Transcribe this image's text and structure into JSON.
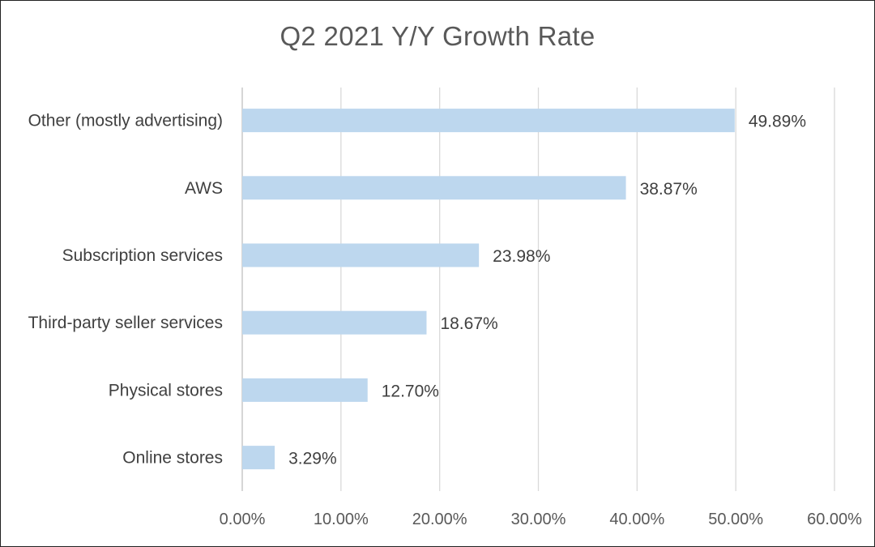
{
  "chart_data": {
    "type": "bar",
    "orientation": "horizontal",
    "title": "Q2 2021 Y/Y Growth Rate",
    "categories": [
      "Other (mostly advertising)",
      "AWS",
      "Subscription services",
      "Third-party seller services",
      "Physical stores",
      "Online stores"
    ],
    "values": [
      49.89,
      38.87,
      23.98,
      18.67,
      12.7,
      3.29
    ],
    "data_labels": [
      "49.89%",
      "38.87%",
      "23.98%",
      "18.67%",
      "12.70%",
      "3.29%"
    ],
    "xlim": [
      0,
      60
    ],
    "x_ticks": [
      "0.00%",
      "10.00%",
      "20.00%",
      "30.00%",
      "40.00%",
      "50.00%",
      "60.00%"
    ],
    "grid": true,
    "bar_color": "#bdd7ee",
    "grid_color": "#d9d9d9"
  }
}
